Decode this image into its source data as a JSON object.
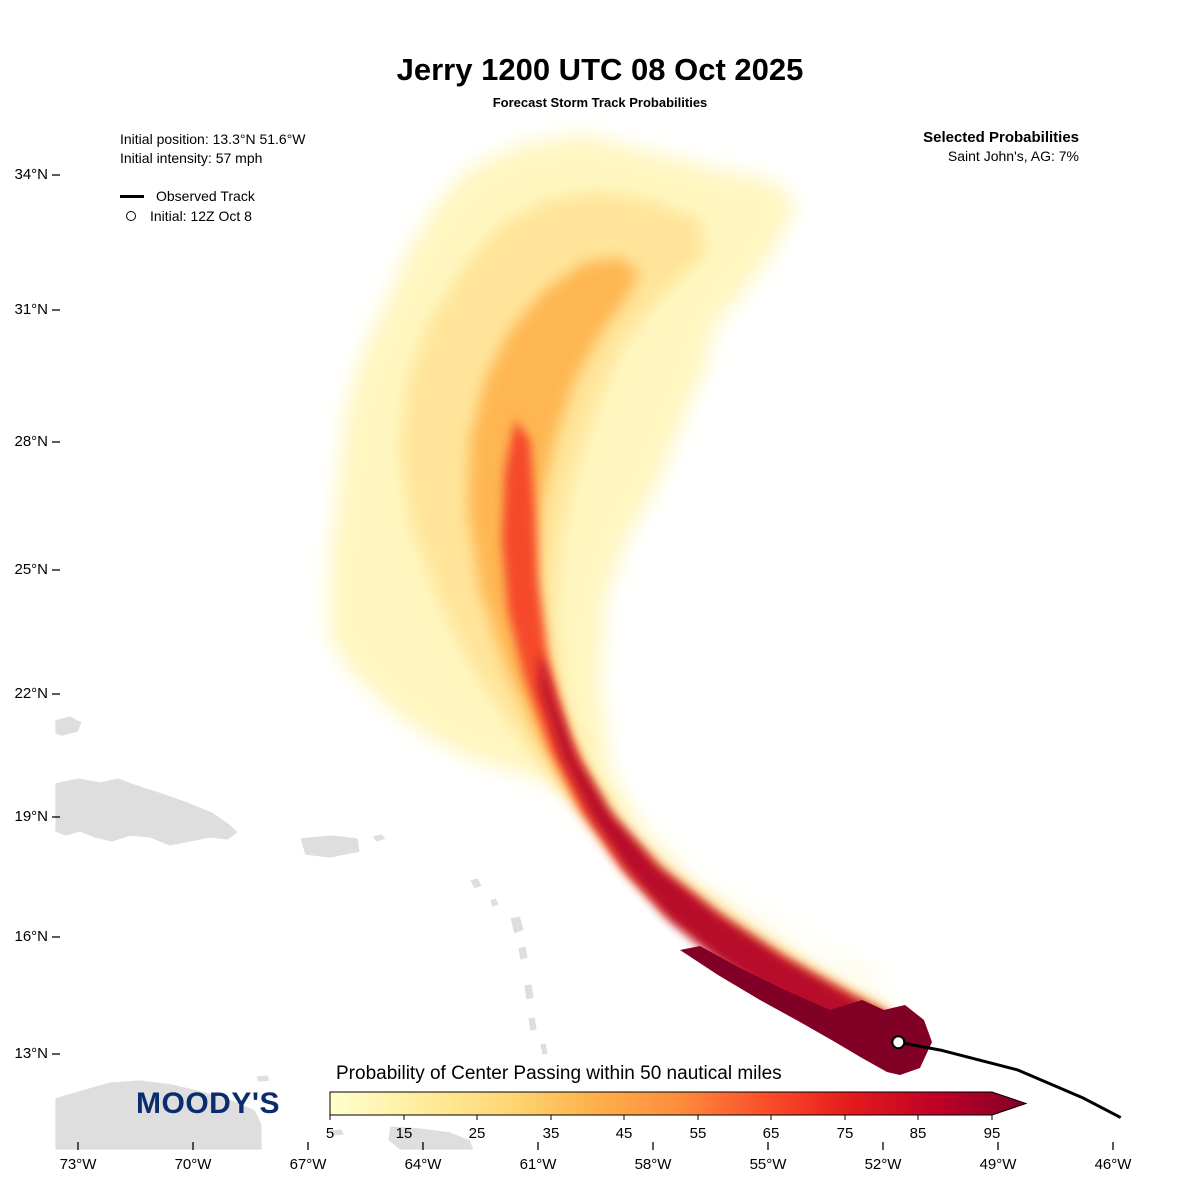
{
  "title": "Jerry 1200 UTC 08 Oct 2025",
  "subtitle": "Forecast Storm Track Probabilities",
  "info": {
    "initial_position": "Initial position: 13.3°N 51.6°W",
    "initial_intensity": "Initial intensity: 57 mph"
  },
  "legend": {
    "observed_track": "Observed Track",
    "initial": "Initial: 12Z Oct 8"
  },
  "selected_probabilities": {
    "header": "Selected Probabilities",
    "entry": "Saint John's, AG: 7%"
  },
  "axes": {
    "lat_labels": [
      "34°N",
      "31°N",
      "28°N",
      "25°N",
      "22°N",
      "19°N",
      "16°N",
      "13°N"
    ],
    "lon_labels": [
      "73°W",
      "70°W",
      "67°W",
      "64°W",
      "61°W",
      "58°W",
      "55°W",
      "52°W",
      "49°W",
      "46°W"
    ]
  },
  "colorbar": {
    "title": "Probability of Center Passing within 50 nautical miles",
    "ticks": [
      "5",
      "15",
      "25",
      "35",
      "45",
      "55",
      "65",
      "75",
      "85",
      "95"
    ],
    "colors": [
      "#ffffcc",
      "#ffeda0",
      "#fed976",
      "#feb24c",
      "#fd8d3c",
      "#fc4e2a",
      "#e31a1c",
      "#bd0026",
      "#800026"
    ]
  },
  "logo": "MOODY'S",
  "colors": {
    "land": "#dedede",
    "track": "#000000",
    "logo": "#0b2d6e"
  },
  "storm": {
    "name": "Jerry",
    "initial_lat": 13.3,
    "initial_lon": -51.6,
    "observed_track": [
      [
        -51.6,
        13.3
      ],
      [
        -50.5,
        13.1
      ],
      [
        -48.5,
        12.6
      ],
      [
        -46.8,
        11.9
      ],
      [
        -45.8,
        11.4
      ]
    ],
    "centerline": [
      [
        -51.6,
        13.3
      ],
      [
        -53.5,
        14.4
      ],
      [
        -55.5,
        15.6
      ],
      [
        -57.3,
        17.0
      ],
      [
        -58.6,
        18.8
      ],
      [
        -59.5,
        20.8
      ],
      [
        -60.0,
        23.0
      ],
      [
        -60.1,
        25.5
      ],
      [
        -59.9,
        28.0
      ],
      [
        -59.2,
        30.5
      ],
      [
        -58.0,
        32.6
      ],
      [
        -56.5,
        33.8
      ]
    ]
  }
}
